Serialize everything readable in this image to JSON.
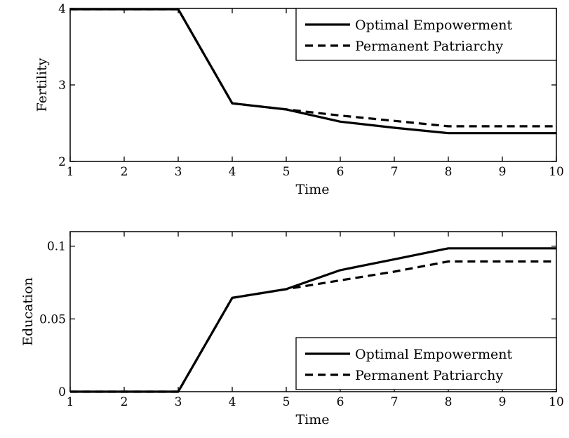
{
  "chart_data": [
    {
      "type": "line",
      "title": "",
      "xlabel": "Time",
      "ylabel": "Fertility",
      "xlim": [
        1,
        10
      ],
      "ylim": [
        2,
        4
      ],
      "xticks": [
        "1",
        "2",
        "3",
        "4",
        "5",
        "6",
        "7",
        "8",
        "9",
        "10"
      ],
      "yticks": [
        {
          "value": 2,
          "label": "2"
        },
        {
          "value": 3,
          "label": "3"
        },
        {
          "value": 4,
          "label": "4"
        }
      ],
      "legend_position": "top-right",
      "grid": false,
      "series": [
        {
          "name": "Optimal Empowerment",
          "style": "solid",
          "x": [
            1,
            2,
            3,
            4,
            5,
            6,
            7,
            8,
            9,
            10
          ],
          "y": [
            3.99,
            3.99,
            3.99,
            2.76,
            2.68,
            2.52,
            2.44,
            2.37,
            2.37,
            2.37
          ]
        },
        {
          "name": "Permanent Patriarchy",
          "style": "dashed",
          "x": [
            1,
            2,
            3,
            4,
            5,
            6,
            7,
            8,
            9,
            10
          ],
          "y": [
            3.99,
            3.99,
            3.99,
            2.76,
            2.68,
            2.6,
            2.53,
            2.46,
            2.46,
            2.46
          ]
        }
      ]
    },
    {
      "type": "line",
      "title": "",
      "xlabel": "Time",
      "ylabel": "Education",
      "xlim": [
        1,
        10
      ],
      "ylim": [
        0,
        0.11
      ],
      "xticks": [
        "1",
        "2",
        "3",
        "4",
        "5",
        "6",
        "7",
        "8",
        "9",
        "10"
      ],
      "yticks": [
        {
          "value": 0,
          "label": "0"
        },
        {
          "value": 0.05,
          "label": "0.05"
        },
        {
          "value": 0.1,
          "label": "0.1"
        }
      ],
      "legend_position": "bottom-right",
      "grid": false,
      "series": [
        {
          "name": "Optimal Empowerment",
          "style": "solid",
          "x": [
            1,
            2,
            3,
            4,
            5,
            6,
            7,
            8,
            9,
            10
          ],
          "y": [
            0,
            0,
            0,
            0.0645,
            0.0705,
            0.0835,
            0.091,
            0.0985,
            0.0985,
            0.0985
          ]
        },
        {
          "name": "Permanent Patriarchy",
          "style": "dashed",
          "x": [
            1,
            2,
            3,
            4,
            5,
            6,
            7,
            8,
            9,
            10
          ],
          "y": [
            0,
            0,
            0,
            0.0645,
            0.0705,
            0.0765,
            0.0825,
            0.0895,
            0.0895,
            0.0895
          ]
        }
      ]
    }
  ]
}
